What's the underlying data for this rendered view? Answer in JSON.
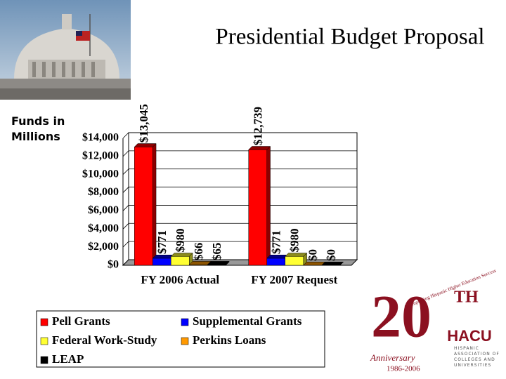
{
  "chart_data": {
    "type": "bar",
    "title": "Presidential Budget Proposal",
    "y_label": "Funds in Millions",
    "categories": [
      "FY 2006 Actual",
      "FY 2007 Request"
    ],
    "series": [
      {
        "name": "Pell Grants",
        "color": "#ff0000",
        "values": [
          13045,
          12739
        ],
        "value_labels": [
          "$13,045",
          "$12,739"
        ]
      },
      {
        "name": "Supplemental Grants",
        "color": "#0000ff",
        "values": [
          771,
          771
        ],
        "value_labels": [
          "$771",
          "$771"
        ]
      },
      {
        "name": "Federal Work-Study",
        "color": "#ffff33",
        "values": [
          980,
          980
        ],
        "value_labels": [
          "$980",
          "$980"
        ]
      },
      {
        "name": "Perkins Loans",
        "color": "#ff9900",
        "values": [
          66,
          0
        ],
        "value_labels": [
          "$66",
          "$0"
        ]
      },
      {
        "name": "LEAP",
        "color": "#000000",
        "values": [
          65,
          0
        ],
        "value_labels": [
          "$65",
          "$0"
        ]
      }
    ],
    "ylim": [
      0,
      14000
    ],
    "yticks": [
      {
        "value": 0,
        "label": "$0"
      },
      {
        "value": 2000,
        "label": "$2,000"
      },
      {
        "value": 4000,
        "label": "$4,000"
      },
      {
        "value": 6000,
        "label": "$6,000"
      },
      {
        "value": 8000,
        "label": "$8,000"
      },
      {
        "value": 10000,
        "label": "$10,000"
      },
      {
        "value": 12000,
        "label": "$12,000"
      },
      {
        "value": 14000,
        "label": "$14,000"
      }
    ],
    "grid": true,
    "legend": "bottom"
  },
  "logo": {
    "number": "20",
    "suffix": "TH",
    "name": "HACU",
    "motto": "Championing Hispanic Higher Education Success",
    "anniversary": "Anniversary",
    "years": "1986-2006",
    "org": "Hispanic Association of Colleges and Universities"
  }
}
